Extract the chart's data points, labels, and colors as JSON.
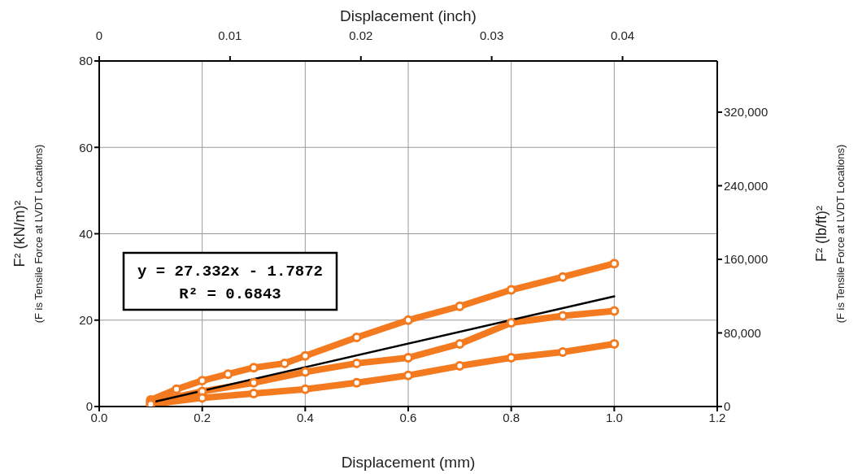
{
  "chart_data": {
    "type": "line",
    "xlabel": "Displacement (mm)",
    "x2label": "Displacement (inch)",
    "ylabel": "F² (kN/m)²\n(F is Tensile Force at LVDT Locations)",
    "y2label": "F² (lb/ft)²\n(F is Tensile Force at LVDT Locations)",
    "annotations": [
      "y = 27.332x - 1.7872\nR² = 0.6843"
    ],
    "xlim": [
      0,
      1.2
    ],
    "xticks": [
      {
        "value": 0,
        "label": "0.0"
      },
      {
        "value": 0.2,
        "label": "0.2"
      },
      {
        "value": 0.4,
        "label": "0.4"
      },
      {
        "value": 0.6,
        "label": "0.6"
      },
      {
        "value": 0.8,
        "label": "0.8"
      },
      {
        "value": 1,
        "label": "1.0"
      },
      {
        "value": 1.2,
        "label": "1.2"
      }
    ],
    "x2lim": [
      0,
      0.04724
    ],
    "x2ticks": [
      0,
      0.01,
      0.02,
      0.03,
      0.04
    ],
    "ylim": [
      0,
      80
    ],
    "yticks": [
      0,
      20,
      40,
      60,
      80
    ],
    "y2lim": [
      0,
      375619
    ],
    "y2ticks": [
      0,
      {
        "value": 80000,
        "label": "80,000"
      },
      {
        "value": 160000,
        "label": "160,000"
      },
      {
        "value": 240000,
        "label": "240,000"
      },
      {
        "value": 320000,
        "label": "320,000"
      }
    ],
    "grid": true,
    "marker": "circle",
    "series": [
      {
        "color": "#f47a20",
        "x": [
          0.1,
          0.15,
          0.2,
          0.25,
          0.3,
          0.36,
          0.4,
          0.5,
          0.6,
          0.7,
          0.8,
          0.9,
          1.0
        ],
        "values": [
          1.5,
          4,
          6,
          7.5,
          9,
          10,
          11.7,
          16,
          20,
          23.2,
          27,
          30,
          33.1
        ]
      },
      {
        "color": "#f47a20",
        "x": [
          0.1,
          0.2,
          0.3,
          0.4,
          0.5,
          0.6,
          0.7,
          0.8,
          0.9,
          1.0
        ],
        "values": [
          1,
          3.5,
          5.5,
          8,
          10,
          11.3,
          14.5,
          19.4,
          21,
          22.1
        ]
      },
      {
        "color": "#f47a20",
        "x": [
          0.1,
          0.2,
          0.3,
          0.4,
          0.5,
          0.6,
          0.7,
          0.8,
          0.9,
          1.0
        ],
        "values": [
          0.5,
          2,
          3,
          4,
          5.5,
          7.2,
          9.4,
          11.3,
          12.6,
          14.5
        ]
      },
      {
        "type": "line",
        "color": "#000000",
        "marker": "none",
        "x": [
          0.1,
          1.0
        ],
        "values": [
          0.9,
          25.5
        ]
      }
    ]
  }
}
